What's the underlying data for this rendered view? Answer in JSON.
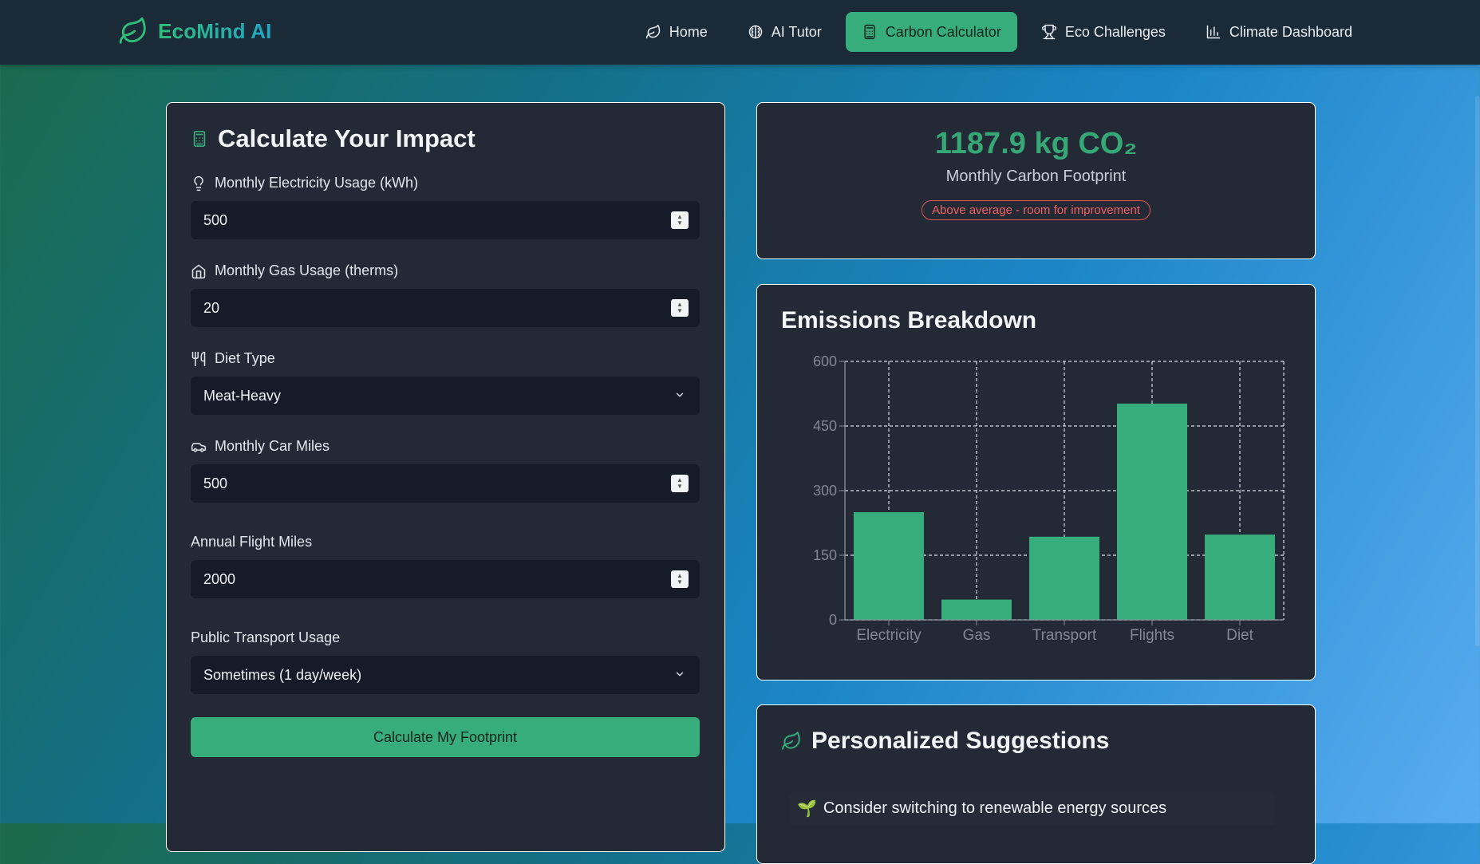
{
  "brand": {
    "name": "EcoMind AI",
    "icon": "leaf-icon"
  },
  "nav": [
    {
      "label": "Home",
      "icon": "leaf-icon",
      "active": false
    },
    {
      "label": "AI Tutor",
      "icon": "brain-icon",
      "active": false
    },
    {
      "label": "Carbon Calculator",
      "icon": "calculator-icon",
      "active": true
    },
    {
      "label": "Eco Challenges",
      "icon": "trophy-icon",
      "active": false
    },
    {
      "label": "Climate Dashboard",
      "icon": "bar-chart-icon",
      "active": false
    }
  ],
  "calculator": {
    "title": "Calculate Your Impact",
    "fields": {
      "electricity": {
        "label": "Monthly Electricity Usage (kWh)",
        "value": "500",
        "icon": "lightbulb-icon"
      },
      "gas": {
        "label": "Monthly Gas Usage (therms)",
        "value": "20",
        "icon": "home-icon"
      },
      "diet": {
        "label": "Diet Type",
        "value": "Meat-Heavy",
        "icon": "utensils-icon"
      },
      "car": {
        "label": "Monthly Car Miles",
        "value": "500",
        "icon": "car-icon"
      },
      "flight": {
        "label": "Annual Flight Miles",
        "value": "2000"
      },
      "transit": {
        "label": "Public Transport Usage",
        "value": "Sometimes (1 day/week)"
      }
    },
    "button_label": "Calculate My Footprint"
  },
  "result": {
    "value": "1187.9 kg CO₂",
    "label": "Monthly Carbon Footprint",
    "badge": "Above average - room for improvement"
  },
  "breakdown": {
    "title": "Emissions Breakdown"
  },
  "suggestions": {
    "title": "Personalized Suggestions",
    "items": [
      {
        "emoji": "🌱",
        "text": "Consider switching to renewable energy sources"
      }
    ]
  },
  "colors": {
    "accent": "#37ad7c",
    "card": "#232a36",
    "topbar": "#1b2a37",
    "danger": "#e05252"
  },
  "chart_data": {
    "type": "bar",
    "title": "Emissions Breakdown",
    "categories": [
      "Electricity",
      "Gas",
      "Transport",
      "Flights",
      "Diet"
    ],
    "values": [
      250,
      47,
      193,
      502,
      198
    ],
    "ylim": [
      0,
      600
    ],
    "yticks": [
      0,
      150,
      300,
      450,
      600
    ],
    "grid": true,
    "bar_color": "#37ad7c"
  }
}
